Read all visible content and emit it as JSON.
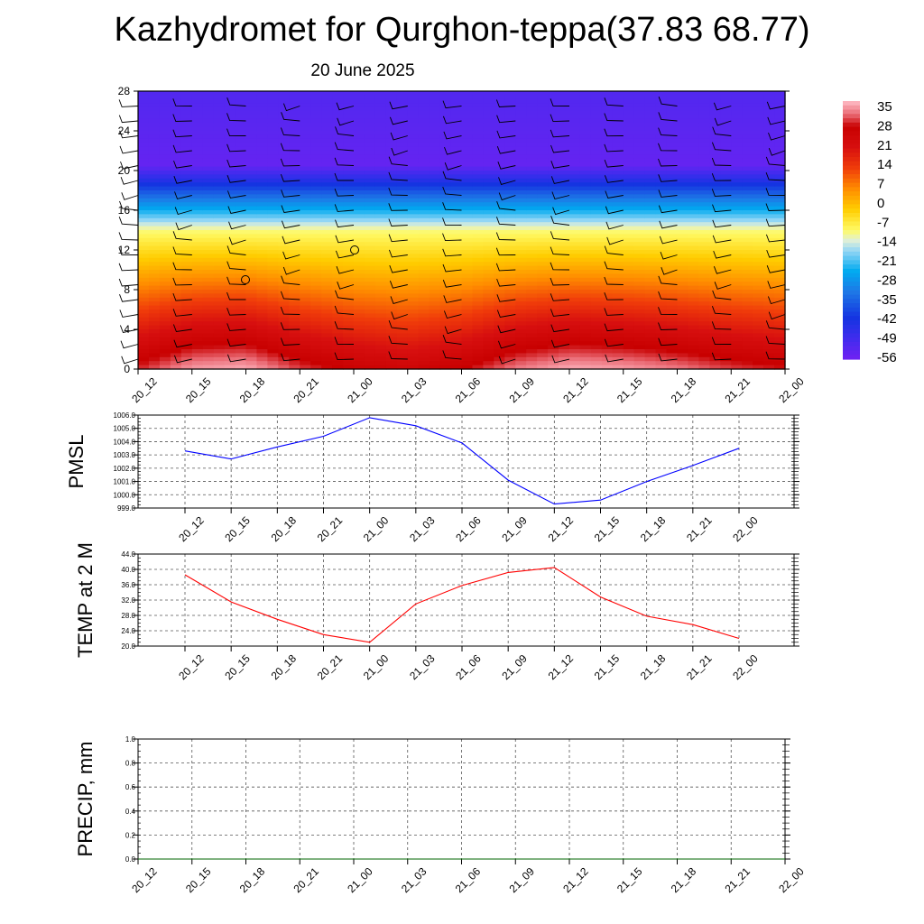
{
  "title": "Kazhydromet for Qurghon-teppa(37.83 68.77)",
  "subtitle": "20 June 2025",
  "chart_data": [
    {
      "type": "heatmap",
      "name": "temperature-profile",
      "time_labels": [
        "20_12",
        "20_15",
        "20_18",
        "20_21",
        "21_00",
        "21_03",
        "21_06",
        "21_09",
        "21_12",
        "21_15",
        "21_18",
        "21_21",
        "22_00"
      ],
      "yticks": [
        0,
        4,
        8,
        12,
        16,
        20,
        24,
        28
      ],
      "ylim": [
        0,
        28
      ],
      "colorbar_labels": [
        "35",
        "28",
        "21",
        "14",
        "7",
        "0",
        "-7",
        "-14",
        "-21",
        "-28",
        "-35",
        "-42",
        "-49",
        "-56"
      ],
      "colorbar_range": [
        -60,
        38
      ],
      "surface_temp": [
        30,
        36,
        37,
        31,
        27,
        25,
        28,
        34,
        37,
        36,
        34,
        31,
        29
      ],
      "lapse_notes": "temperature decreasing with height; tropopause near 20-21 km (~ -58), above ~ -55"
    },
    {
      "type": "line",
      "name": "pmsl",
      "ylabel": "PMSL",
      "x": [
        "20_12",
        "20_15",
        "20_18",
        "20_21",
        "21_00",
        "21_03",
        "21_06",
        "21_09",
        "21_12",
        "21_15",
        "21_18",
        "21_21",
        "22_00"
      ],
      "values": [
        1003.3,
        1002.7,
        1003.6,
        1004.4,
        1005.8,
        1005.2,
        1003.9,
        1001.1,
        999.3,
        999.6,
        1001.0,
        1002.2,
        1003.5
      ],
      "yticks": [
        "999.0",
        "1000.0",
        "1001.0",
        "1002.0",
        "1003.0",
        "1004.0",
        "1005.0",
        "1006.0"
      ],
      "ylim": [
        999.0,
        1006.0
      ],
      "color": "#0000ff"
    },
    {
      "type": "line",
      "name": "temp2m",
      "ylabel": "TEMP at 2 M",
      "x": [
        "20_12",
        "20_15",
        "20_18",
        "20_21",
        "21_00",
        "21_03",
        "21_06",
        "21_09",
        "21_12",
        "21_15",
        "21_18",
        "21_21",
        "22_00"
      ],
      "values": [
        38.6,
        31.5,
        27.0,
        23.0,
        21.0,
        31.0,
        35.8,
        39.2,
        40.5,
        32.8,
        27.8,
        25.6,
        22.0
      ],
      "yticks": [
        "20.0",
        "24.0",
        "28.0",
        "32.0",
        "36.0",
        "40.0",
        "44.0"
      ],
      "ylim": [
        20.0,
        44.0
      ],
      "color": "#ff0000"
    },
    {
      "type": "line",
      "name": "precip",
      "ylabel": "PRECIP, mm",
      "x": [
        "20_12",
        "20_15",
        "20_18",
        "20_21",
        "21_00",
        "21_03",
        "21_06",
        "21_09",
        "21_12",
        "21_15",
        "21_18",
        "21_21",
        "22_00"
      ],
      "values": [
        0,
        0,
        0,
        0,
        0,
        0,
        0,
        0,
        0,
        0,
        0,
        0,
        0
      ],
      "yticks": [
        "0.0",
        "0.2",
        "0.4",
        "0.6",
        "0.8",
        "1.0"
      ],
      "ylim": [
        0.0,
        1.0
      ],
      "color": "#006400"
    }
  ]
}
